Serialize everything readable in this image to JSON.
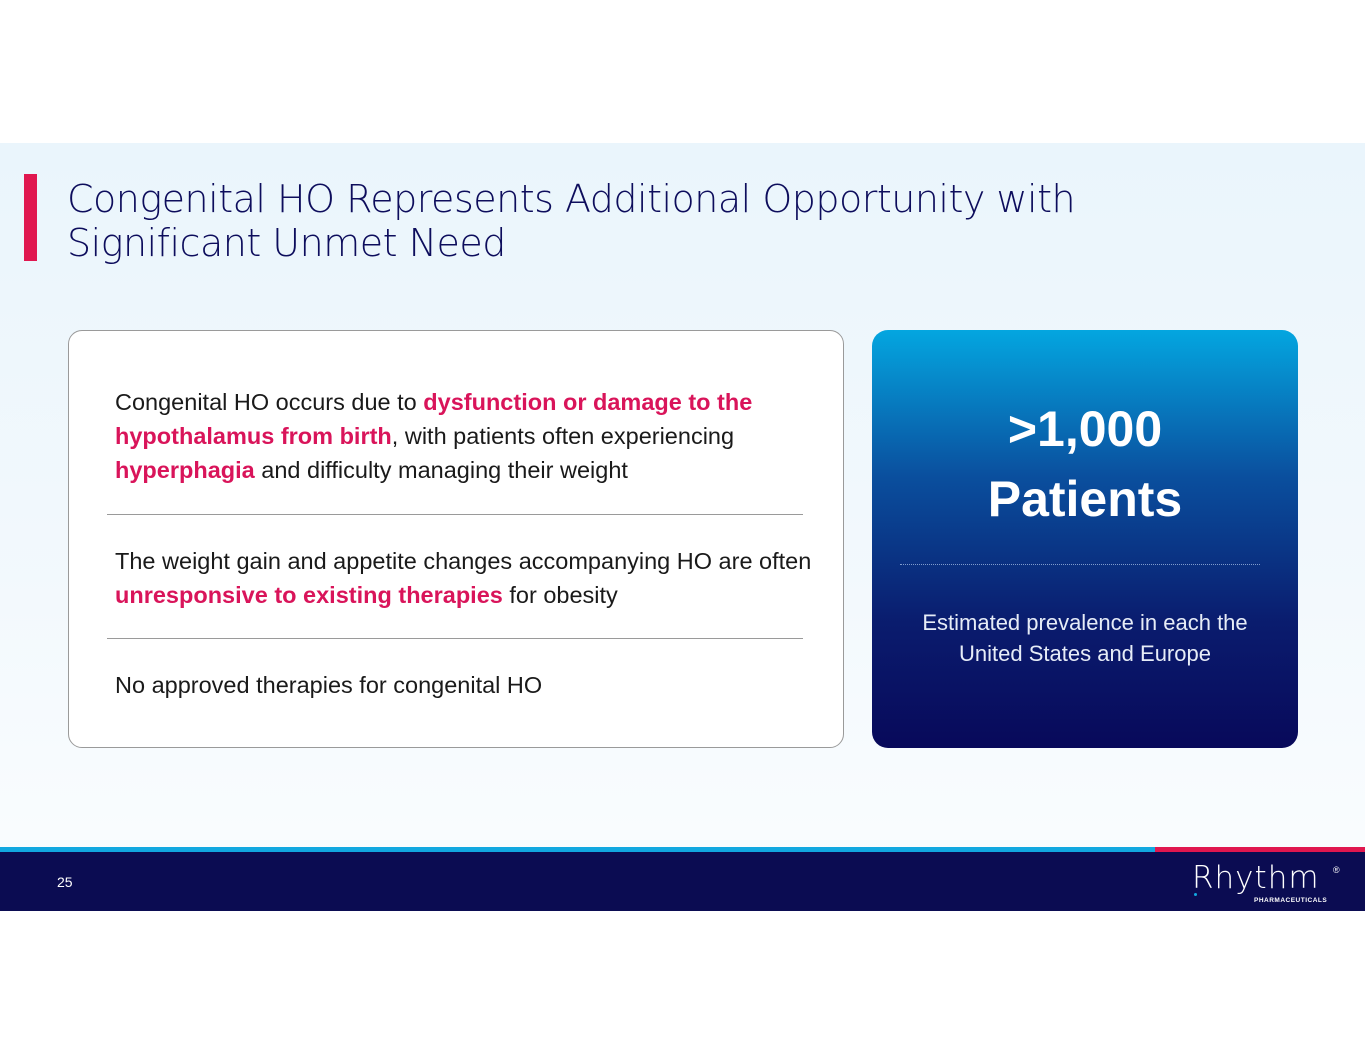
{
  "title": "Congenital HO Represents Additional Opportunity with Significant Unmet Need",
  "points": [
    {
      "parts": [
        {
          "t": "Congenital HO occurs due to ",
          "h": false
        },
        {
          "t": "dysfunction or damage to the hypothalamus from birth",
          "h": true
        },
        {
          "t": ", with patients often experiencing ",
          "h": false
        },
        {
          "t": "hyperphagia",
          "h": true
        },
        {
          "t": " and difficulty managing their weight",
          "h": false
        }
      ]
    },
    {
      "parts": [
        {
          "t": "The weight gain and appetite changes accompanying HO are often ",
          "h": false
        },
        {
          "t": "unresponsive to existing therapies",
          "h": true
        },
        {
          "t": " for obesity",
          "h": false
        }
      ]
    },
    {
      "parts": [
        {
          "t": "No approved therapies for congenital HO",
          "h": false
        }
      ]
    }
  ],
  "stat": {
    "value": ">1,000",
    "label": "Patients",
    "description": "Estimated prevalence in each the United States and Europe"
  },
  "footer": {
    "page_number": "25",
    "logo": "Rhythm",
    "logo_sub": "PHARMACEUTICALS",
    "logo_reg": "®"
  },
  "colors": {
    "accent": "#e0174f",
    "navy": "#0b0c52",
    "cyan": "#12a8e0",
    "highlight": "#d9145a"
  }
}
